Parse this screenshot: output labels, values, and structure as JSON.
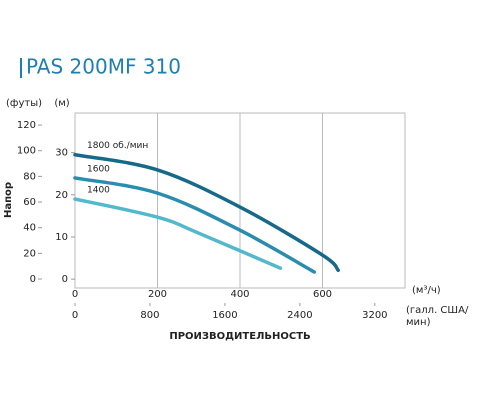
{
  "chart_data": {
    "type": "line",
    "title": "PAS 200MF 310",
    "y_label": "Напор",
    "y_unit": "(м)",
    "y2_unit": "(футы)",
    "x_label": "ПРОИЗВОДИТЕЛЬНОСТЬ",
    "x_unit": "(м³/ч)",
    "x2_unit": "(галл. США/мин)",
    "xlim": [
      0,
      800
    ],
    "xticks": [
      0,
      200,
      400,
      600
    ],
    "x2lim": [
      0,
      3522
    ],
    "x2ticks": [
      0,
      800,
      1600,
      2400,
      3200
    ],
    "ylim": [
      -2.1,
      39.4
    ],
    "yticks": [
      0,
      10,
      20,
      30
    ],
    "y2lim": [
      -7,
      129.4
    ],
    "y2ticks": [
      0,
      20,
      40,
      60,
      80,
      100,
      120
    ],
    "grid": true,
    "series": [
      {
        "name": "1800 об./мин",
        "color": "#17698a",
        "x": [
          0,
          200,
          400,
          600,
          638
        ],
        "values": [
          29.5,
          25.9,
          17.1,
          5.7,
          2.1
        ]
      },
      {
        "name": "1600",
        "color": "#2a8db0",
        "x": [
          0,
          200,
          400,
          580
        ],
        "values": [
          24,
          20.4,
          11.6,
          1.7
        ]
      },
      {
        "name": "1400",
        "color": "#52b8cc",
        "x": [
          0,
          200,
          300,
          498
        ],
        "values": [
          19,
          14.7,
          10.9,
          2.6
        ]
      }
    ]
  }
}
